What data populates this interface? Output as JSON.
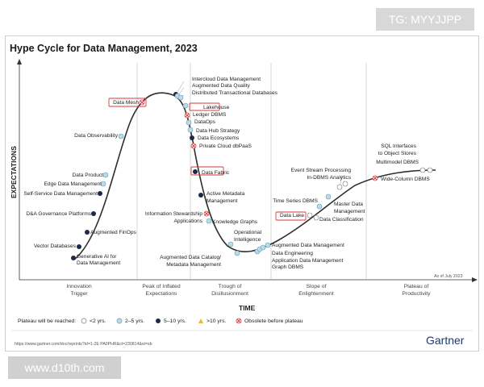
{
  "watermark_top": "TG: MYYJJPP",
  "watermark_bottom": "www.d10th.com",
  "brand": "Gartner",
  "url_text": "https://www.gartner.com/doc/reprints?id=1-2E PA0PHR&ct=230814&st=sb",
  "chart_data": {
    "type": "line",
    "title": "Hype Cycle for Data Management, 2023",
    "xlabel": "TIME",
    "ylabel": "EXPECTATIONS",
    "as_of": "As of July 2023",
    "phases": [
      [
        "Innovation",
        "Trigger"
      ],
      [
        "Peak of Inflated",
        "Expectations"
      ],
      [
        "Trough of",
        "Disillusionment"
      ],
      [
        "Slope of",
        "Enlightenment"
      ],
      [
        "Plateau of",
        "Productivity"
      ]
    ],
    "legend": {
      "title": "Plateau will be reached:",
      "items": [
        {
          "label": "<2 yrs.",
          "marker": "circle-white"
        },
        {
          "label": "2–5 yrs.",
          "marker": "circle-lightblue"
        },
        {
          "label": "5–10 yrs.",
          "marker": "circle-navy"
        },
        {
          "label": ">10 yrs.",
          "marker": "triangle-yellow"
        },
        {
          "label": "Obsolete before plateau",
          "marker": "x-red"
        }
      ]
    },
    "colors": {
      "curve": "#2e2e2e",
      "lt2": "#ffffff",
      "y2to5": "#b9dce8",
      "y5to10": "#1b2a4a",
      "gt10": "#e9b93a",
      "obsolete": "#d83a3a",
      "highlight": "#d83a3a"
    },
    "points": [
      {
        "name": "Generative AI for Data Management",
        "plateau": "5-10"
      },
      {
        "name": "Vector Databases",
        "plateau": "5-10"
      },
      {
        "name": "Augmented FinOps",
        "plateau": "5-10"
      },
      {
        "name": "D&A Governance Platforms",
        "plateau": "5-10"
      },
      {
        "name": "Self-Service Data Management",
        "plateau": "5-10"
      },
      {
        "name": "Edge Data Management",
        "plateau": "2-5"
      },
      {
        "name": "Data Product",
        "plateau": "2-5"
      },
      {
        "name": "Data Observability",
        "plateau": "2-5"
      },
      {
        "name": "Data Mesh",
        "plateau": "obsolete",
        "highlight": true
      },
      {
        "name": "Intercloud Data Management",
        "plateau": "5-10"
      },
      {
        "name": "Augmented Data Quality",
        "plateau": "2-5"
      },
      {
        "name": "Distributed Transactional Databases",
        "plateau": "2-5"
      },
      {
        "name": "Lakehouse",
        "plateau": "2-5",
        "highlight": true
      },
      {
        "name": "Ledger DBMS",
        "plateau": "obsolete"
      },
      {
        "name": "DataOps",
        "plateau": "2-5"
      },
      {
        "name": "Data Hub Strategy",
        "plateau": "2-5"
      },
      {
        "name": "Data Ecosystems",
        "plateau": "5-10"
      },
      {
        "name": "Private Cloud dbPaaS",
        "plateau": "obsolete"
      },
      {
        "name": "Data Fabric",
        "plateau": "5-10",
        "highlight": true
      },
      {
        "name": "Active Metadata Management",
        "plateau": "5-10"
      },
      {
        "name": "Information Stewardship Applications",
        "plateau": "obsolete"
      },
      {
        "name": "Knowledge Graphs",
        "plateau": "2-5"
      },
      {
        "name": "Operational Intelligence",
        "plateau": "2-5"
      },
      {
        "name": "Augmented Data Catalog/ Metadata Management",
        "plateau": "2-5"
      },
      {
        "name": "Augmented Data Management",
        "plateau": "2-5"
      },
      {
        "name": "Data Engineering",
        "plateau": "2-5"
      },
      {
        "name": "Application Data Management",
        "plateau": "2-5"
      },
      {
        "name": "Graph DBMS",
        "plateau": "2-5"
      },
      {
        "name": "Data Lake",
        "plateau": "<2",
        "highlight": true
      },
      {
        "name": "Time Series DBMS",
        "plateau": "2-5"
      },
      {
        "name": "Data Classification",
        "plateau": "<2"
      },
      {
        "name": "Master Data Management",
        "plateau": "2-5"
      },
      {
        "name": "Event Stream Processing",
        "plateau": "<2"
      },
      {
        "name": "In-DBMS Analytics",
        "plateau": "<2"
      },
      {
        "name": "SQL Interfaces to Object Stores",
        "plateau": "<2"
      },
      {
        "name": "Multimodel DBMS",
        "plateau": "<2"
      },
      {
        "name": "Wide-Column DBMS",
        "plateau": "obsolete"
      }
    ]
  }
}
